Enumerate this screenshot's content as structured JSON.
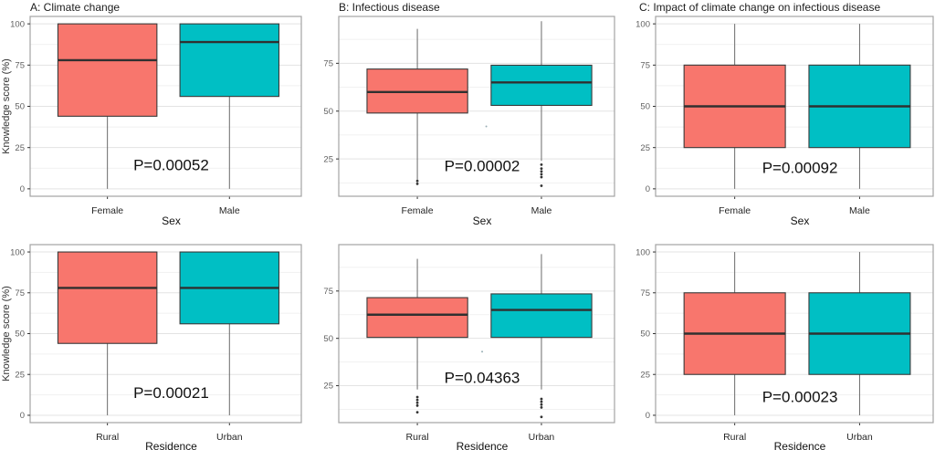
{
  "figure": {
    "background": "#ffffff",
    "palette": {
      "group1": "#F8766D",
      "group2": "#00BFC4"
    },
    "style": {
      "panel_border": "#a3a3a3",
      "grid_major": "#e3e3e3",
      "grid_minor": "#f1f1f1",
      "box_stroke": "#3a3a3a",
      "median_stroke": "#303030",
      "whisker_stroke": "#6a6a6a",
      "outlier_color": "#333333",
      "tick_label_color": "#606060",
      "cat_label_color": "#262626",
      "axis_title_color": "#111111",
      "pvalue_color": "#101010"
    }
  },
  "chart_data": [
    {
      "type": "boxplot",
      "title": "A: Climate change",
      "xlabel": "Sex",
      "ylabel": "Knowledge score (%)",
      "ylim": [
        -4.5,
        104.5
      ],
      "yticks": [
        0,
        25,
        50,
        75,
        100
      ],
      "pvalue": {
        "text": "P=0.00052",
        "x": 0.52,
        "y": 14
      },
      "groups": [
        {
          "label": "Female",
          "color": "#F8766D",
          "whisker_low": 0,
          "q1": 44,
          "median": 78,
          "q3": 100,
          "whisker_high": 100,
          "outliers": []
        },
        {
          "label": "Male",
          "color": "#00BFC4",
          "whisker_low": 0,
          "q1": 56,
          "median": 89,
          "q3": 100,
          "whisker_high": 100,
          "outliers": []
        }
      ]
    },
    {
      "type": "boxplot",
      "title": "B: Infectious disease",
      "xlabel": "Sex",
      "ylabel": "",
      "ylim": [
        5.5,
        99.5
      ],
      "yticks": [
        25,
        50,
        75
      ],
      "pvalue": {
        "text": "P=0.00002",
        "x": 0.52,
        "y": 21
      },
      "stray_dots": [
        {
          "x": 0.535,
          "y": 42
        }
      ],
      "groups": [
        {
          "label": "Female",
          "color": "#F8766D",
          "whisker_low": 14,
          "q1": 49,
          "median": 60,
          "q3": 72,
          "whisker_high": 93,
          "outliers": [
            13.5,
            12
          ]
        },
        {
          "label": "Male",
          "color": "#00BFC4",
          "whisker_low": 24,
          "q1": 53,
          "median": 65,
          "q3": 74,
          "whisker_high": 97,
          "outliers": [
            22,
            20,
            18.5,
            17,
            15.5,
            11
          ]
        }
      ]
    },
    {
      "type": "boxplot",
      "title": "C: Impact of climate change on infectious disease",
      "xlabel": "Sex",
      "ylabel": "",
      "ylim": [
        -4.5,
        104.5
      ],
      "yticks": [
        0,
        25,
        50,
        75,
        100
      ],
      "pvalue": {
        "text": "P=0.00092",
        "x": 0.52,
        "y": 12.5
      },
      "groups": [
        {
          "label": "Female",
          "color": "#F8766D",
          "whisker_low": 0,
          "q1": 25,
          "median": 50,
          "q3": 75,
          "whisker_high": 100,
          "outliers": []
        },
        {
          "label": "Male",
          "color": "#00BFC4",
          "whisker_low": 0,
          "q1": 25,
          "median": 50,
          "q3": 75,
          "whisker_high": 100,
          "outliers": []
        }
      ]
    },
    {
      "type": "boxplot",
      "title": "",
      "xlabel": "Residence",
      "ylabel": "Knowledge score (%)",
      "ylim": [
        -4.5,
        104.5
      ],
      "yticks": [
        0,
        25,
        50,
        75,
        100
      ],
      "pvalue": {
        "text": "P=0.00021",
        "x": 0.52,
        "y": 13.5
      },
      "groups": [
        {
          "label": "Rural",
          "color": "#F8766D",
          "whisker_low": 0,
          "q1": 44,
          "median": 78,
          "q3": 100,
          "whisker_high": 100,
          "outliers": []
        },
        {
          "label": "Urban",
          "color": "#00BFC4",
          "whisker_low": 0,
          "q1": 56,
          "median": 78,
          "q3": 100,
          "whisker_high": 100,
          "outliers": []
        }
      ]
    },
    {
      "type": "boxplot",
      "title": "",
      "xlabel": "Residence",
      "ylabel": "",
      "ylim": [
        5.5,
        99.5
      ],
      "yticks": [
        25,
        50,
        75
      ],
      "pvalue": {
        "text": "P=0.04363",
        "x": 0.52,
        "y": 29
      },
      "stray_dots": [
        {
          "x": 0.52,
          "y": 43
        }
      ],
      "groups": [
        {
          "label": "Rural",
          "color": "#F8766D",
          "whisker_low": 23,
          "q1": 50.5,
          "median": 62.5,
          "q3": 71.5,
          "whisker_high": 92,
          "outliers": [
            19,
            17.5,
            16,
            14.5,
            11
          ]
        },
        {
          "label": "Urban",
          "color": "#00BFC4",
          "whisker_low": 23,
          "q1": 50.5,
          "median": 65,
          "q3": 73.5,
          "whisker_high": 94.5,
          "outliers": [
            18,
            16.5,
            15,
            13.5,
            8.5
          ]
        }
      ]
    },
    {
      "type": "boxplot",
      "title": "",
      "xlabel": "Residence",
      "ylabel": "",
      "ylim": [
        -4.5,
        104.5
      ],
      "yticks": [
        0,
        25,
        50,
        75,
        100
      ],
      "pvalue": {
        "text": "P=0.00023",
        "x": 0.52,
        "y": 11
      },
      "groups": [
        {
          "label": "Rural",
          "color": "#F8766D",
          "whisker_low": 0,
          "q1": 25,
          "median": 50,
          "q3": 75,
          "whisker_high": 100,
          "outliers": []
        },
        {
          "label": "Urban",
          "color": "#00BFC4",
          "whisker_low": 0,
          "q1": 25,
          "median": 50,
          "q3": 75,
          "whisker_high": 100,
          "outliers": []
        }
      ]
    }
  ]
}
